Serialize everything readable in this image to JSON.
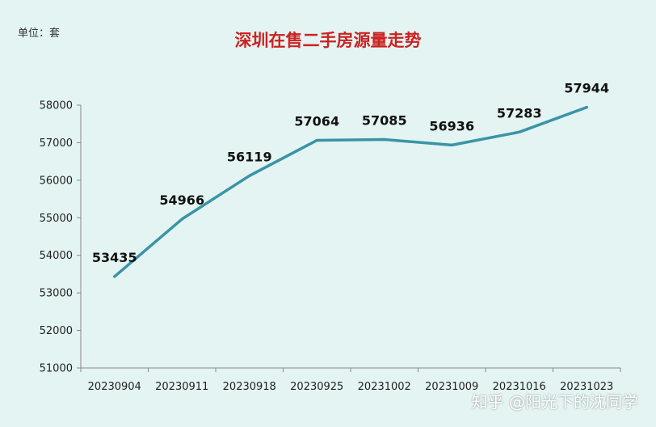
{
  "unit_label": "单位：套",
  "watermark": "知乎 @阳光下的沈同学",
  "colors": {
    "line": "#3a94a6",
    "title": "#cc2222",
    "background": "#e3f4f2"
  },
  "chart_data": {
    "type": "line",
    "title": "深圳在售二手房源量走势",
    "xlabel": "",
    "ylabel": "",
    "categories": [
      "20230904",
      "20230911",
      "20230918",
      "20230925",
      "20231002",
      "20231009",
      "20231016",
      "20231023"
    ],
    "series": [
      {
        "values": [
          53435,
          54966,
          56119,
          57064,
          57085,
          56936,
          57283,
          57944
        ]
      }
    ],
    "data_labels": [
      "53435",
      "54966",
      "56119",
      "57064",
      "57085",
      "56936",
      "57283",
      "57944"
    ],
    "y_ticks": [
      "51000",
      "52000",
      "53000",
      "54000",
      "55000",
      "56000",
      "57000",
      "58000"
    ],
    "ylim": [
      51000,
      58000
    ],
    "grid": false,
    "legend": "none"
  }
}
